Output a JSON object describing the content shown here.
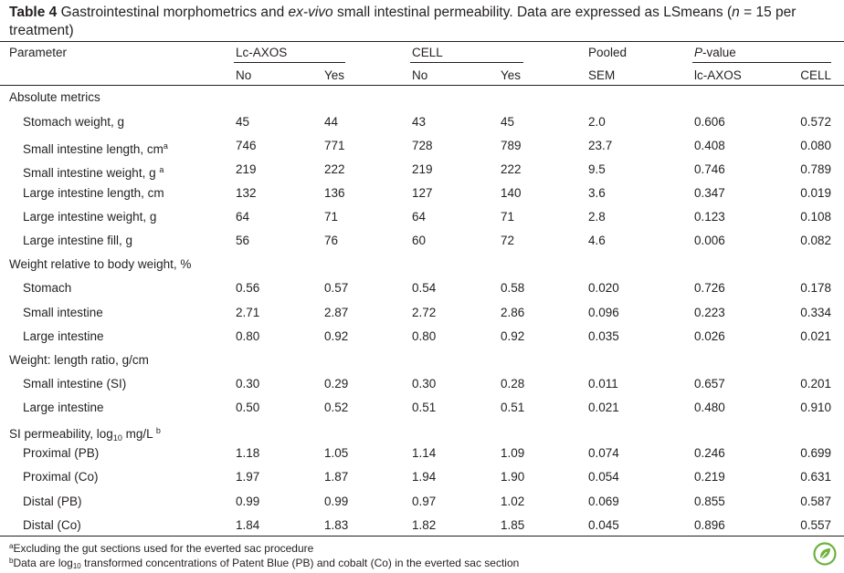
{
  "caption": {
    "label": "Table 4",
    "text_pre": " Gastrointestinal morphometrics and ",
    "text_italic": "ex-vivo",
    "text_mid": " small intestinal permeability. Data are expressed as LSmeans (",
    "n_var": "n",
    "text_post": " = 15 per treatment)"
  },
  "header": {
    "parameter": "Parameter",
    "lcaxos": "Lc-AXOS",
    "cell": "CELL",
    "pooled": "Pooled",
    "pvalue": "P-value",
    "no1": "No",
    "yes1": "Yes",
    "no2": "No",
    "yes2": "Yes",
    "sem": "SEM",
    "p_lcaxos": "lc-AXOS",
    "p_cell": "CELL"
  },
  "sections": [
    {
      "title": "Absolute metrics",
      "rows": [
        {
          "label": "Stomach weight, g",
          "sup": "",
          "v": [
            "45",
            "44",
            "43",
            "45",
            "2.0",
            "0.606",
            "0.572"
          ]
        },
        {
          "label": "Small intestine length, cm",
          "sup": "a",
          "v": [
            "746",
            "771",
            "728",
            "789",
            "23.7",
            "0.408",
            "0.080"
          ]
        },
        {
          "label": "Small intestine weight, g ",
          "sup": "a",
          "v": [
            "219",
            "222",
            "219",
            "222",
            "9.5",
            "0.746",
            "0.789"
          ]
        },
        {
          "label": "Large intestine length, cm",
          "sup": "",
          "v": [
            "132",
            "136",
            "127",
            "140",
            "3.6",
            "0.347",
            "0.019"
          ]
        },
        {
          "label": "Large intestine weight, g",
          "sup": "",
          "v": [
            "64",
            "71",
            "64",
            "71",
            "2.8",
            "0.123",
            "0.108"
          ]
        },
        {
          "label": "Large intestine fill, g",
          "sup": "",
          "v": [
            "56",
            "76",
            "60",
            "72",
            "4.6",
            "0.006",
            "0.082"
          ]
        }
      ]
    },
    {
      "title": "Weight relative to body weight, %",
      "rows": [
        {
          "label": "Stomach",
          "sup": "",
          "v": [
            "0.56",
            "0.57",
            "0.54",
            "0.58",
            "0.020",
            "0.726",
            "0.178"
          ]
        },
        {
          "label": "Small intestine",
          "sup": "",
          "v": [
            "2.71",
            "2.87",
            "2.72",
            "2.86",
            "0.096",
            "0.223",
            "0.334"
          ]
        },
        {
          "label": "Large intestine",
          "sup": "",
          "v": [
            "0.80",
            "0.92",
            "0.80",
            "0.92",
            "0.035",
            "0.026",
            "0.021"
          ]
        }
      ]
    },
    {
      "title": "Weight: length ratio, g/cm",
      "rows": [
        {
          "label": "Small intestine (SI)",
          "sup": "",
          "v": [
            "0.30",
            "0.29",
            "0.30",
            "0.28",
            "0.011",
            "0.657",
            "0.201"
          ]
        },
        {
          "label": "Large intestine",
          "sup": "",
          "v": [
            "0.50",
            "0.52",
            "0.51",
            "0.51",
            "0.021",
            "0.480",
            "0.910"
          ]
        }
      ]
    },
    {
      "title_pre": "SI permeability, log",
      "title_sub": "10",
      "title_post": " mg/L ",
      "title_sup": "b",
      "rows": [
        {
          "label": "Proximal (PB)",
          "sup": "",
          "v": [
            "1.18",
            "1.05",
            "1.14",
            "1.09",
            "0.074",
            "0.246",
            "0.699"
          ]
        },
        {
          "label": "Proximal (Co)",
          "sup": "",
          "v": [
            "1.97",
            "1.87",
            "1.94",
            "1.90",
            "0.054",
            "0.219",
            "0.631"
          ]
        },
        {
          "label": "Distal (PB)",
          "sup": "",
          "v": [
            "0.99",
            "0.99",
            "0.97",
            "1.02",
            "0.069",
            "0.855",
            "0.587"
          ]
        },
        {
          "label": "Distal (Co)",
          "sup": "",
          "v": [
            "1.84",
            "1.83",
            "1.82",
            "1.85",
            "0.045",
            "0.896",
            "0.557"
          ]
        }
      ]
    }
  ],
  "footnotes": {
    "a_mark": "a",
    "a_text": "Excluding the gut sections used for the everted sac procedure",
    "b_mark": "b",
    "b_pre": "Data are log",
    "b_sub": "10",
    "b_post": " transformed concentrations of Patent Blue (PB) and cobalt (Co) in the everted sac section"
  },
  "logo_icon": "springer-leaf-logo-icon",
  "colors": {
    "text": "#231f20",
    "logo": "#6cb33f"
  }
}
